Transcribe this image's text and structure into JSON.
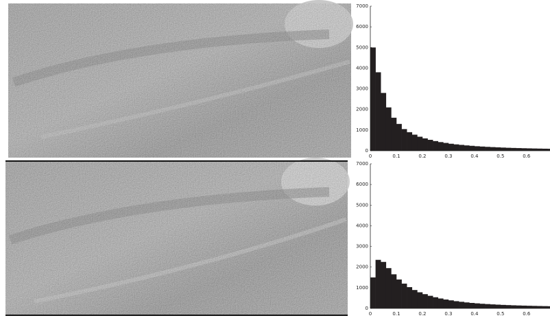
{
  "chart_data": [
    {
      "type": "histogram",
      "color": "#231f20",
      "bins": [
        0,
        0.02,
        0.04,
        0.06,
        0.08,
        0.1,
        0.12,
        0.14,
        0.16,
        0.18,
        0.2,
        0.22,
        0.24,
        0.26,
        0.28,
        0.3,
        0.32,
        0.34,
        0.36,
        0.38,
        0.4,
        0.42,
        0.44,
        0.46,
        0.48,
        0.5,
        0.52,
        0.54,
        0.56,
        0.58,
        0.6,
        0.62,
        0.64,
        0.66,
        0.68,
        0.7
      ],
      "values": [
        5000,
        3800,
        2800,
        2100,
        1600,
        1300,
        1050,
        900,
        780,
        680,
        600,
        530,
        470,
        420,
        380,
        340,
        310,
        285,
        260,
        240,
        220,
        205,
        190,
        178,
        166,
        155,
        145,
        137,
        130,
        123,
        117,
        111,
        106,
        101,
        97
      ],
      "xlim": [
        0,
        0.69
      ],
      "xticks": [
        0,
        0.1,
        0.2,
        0.3,
        0.4,
        0.5,
        0.6
      ],
      "ylim": [
        0,
        7000
      ],
      "yticks": [
        0,
        1000,
        2000,
        3000,
        4000,
        5000,
        6000,
        7000
      ]
    },
    {
      "type": "histogram",
      "color": "#231f20",
      "bins": [
        0,
        0.02,
        0.04,
        0.06,
        0.08,
        0.1,
        0.12,
        0.14,
        0.16,
        0.18,
        0.2,
        0.22,
        0.24,
        0.26,
        0.28,
        0.3,
        0.32,
        0.34,
        0.36,
        0.38,
        0.4,
        0.42,
        0.44,
        0.46,
        0.48,
        0.5,
        0.52,
        0.54,
        0.56,
        0.58,
        0.6,
        0.62,
        0.64,
        0.66,
        0.68,
        0.7
      ],
      "values": [
        1500,
        2350,
        2250,
        1950,
        1650,
        1400,
        1200,
        1030,
        890,
        780,
        690,
        610,
        540,
        480,
        430,
        390,
        350,
        320,
        290,
        265,
        245,
        225,
        210,
        195,
        182,
        170,
        160,
        150,
        142,
        135,
        128,
        122,
        116,
        111,
        106
      ],
      "xlim": [
        0,
        0.69
      ],
      "xticks": [
        0,
        0.1,
        0.2,
        0.3,
        0.4,
        0.5,
        0.6
      ],
      "ylim": [
        0,
        7000
      ],
      "yticks": [
        0,
        1000,
        2000,
        3000,
        4000,
        5000,
        6000,
        7000
      ]
    }
  ]
}
